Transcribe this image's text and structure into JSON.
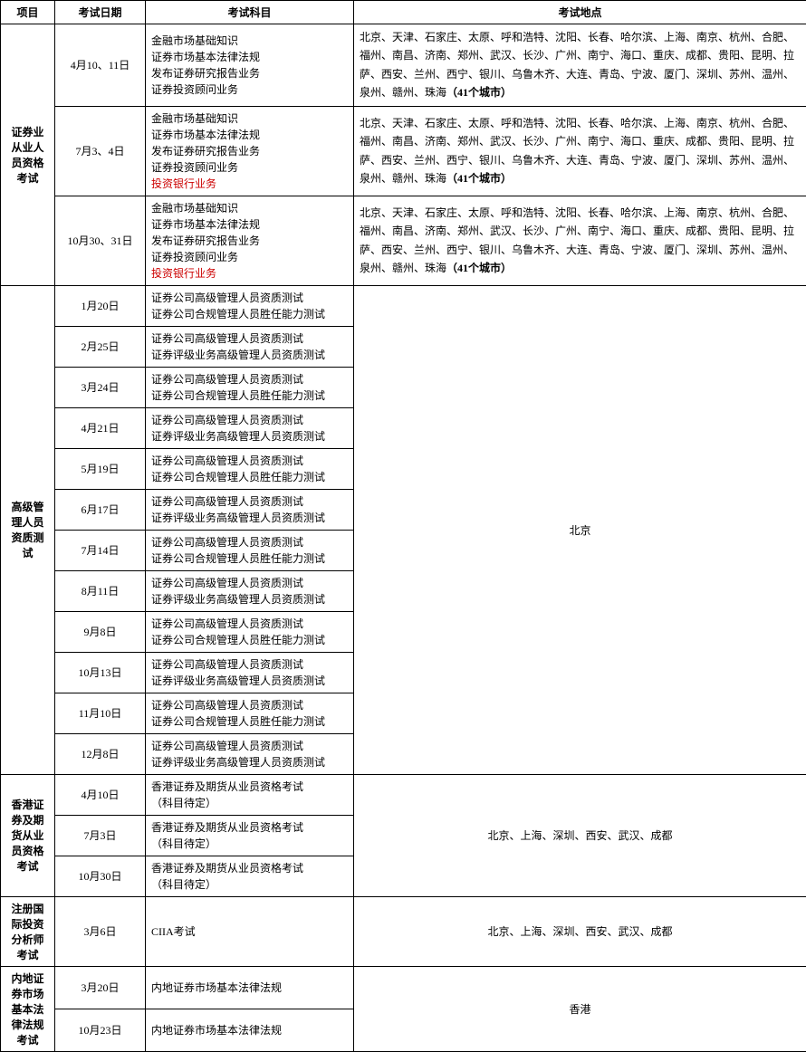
{
  "headers": {
    "project": "项目",
    "date": "考试日期",
    "subject": "考试科目",
    "location": "考试地点"
  },
  "sec1": {
    "name": "证券业从业人员资格考试",
    "rows": [
      {
        "date": "4月10、11日",
        "subjects": [
          "金融市场基础知识",
          "证券市场基本法律法规",
          "发布证券研究报告业务",
          "证券投资顾问业务"
        ],
        "reds": [],
        "loc_part1": "北京、天津、石家庄、太原、呼和浩特、沈阳、长春、哈尔滨、上海、南京、杭州、合肥、福州、南昌、济南、郑州、武汉、长沙、广州、南宁、海口、重庆、成都、贵阳、昆明、拉萨、西安、兰州、西宁、银川、乌鲁木齐、大连、青岛、宁波、厦门、深圳、苏州、温州、泉州、赣州、珠海",
        "loc_bold": "（41个城市）"
      },
      {
        "date": "7月3、4日",
        "subjects": [
          "金融市场基础知识",
          "证券市场基本法律法规",
          "发布证券研究报告业务",
          "证券投资顾问业务"
        ],
        "reds": [
          "投资银行业务"
        ],
        "loc_part1": "北京、天津、石家庄、太原、呼和浩特、沈阳、长春、哈尔滨、上海、南京、杭州、合肥、福州、南昌、济南、郑州、武汉、长沙、广州、南宁、海口、重庆、成都、贵阳、昆明、拉萨、西安、兰州、西宁、银川、乌鲁木齐、大连、青岛、宁波、厦门、深圳、苏州、温州、泉州、赣州、珠海",
        "loc_bold": "（41个城市）"
      },
      {
        "date": "10月30、31日",
        "subjects": [
          "金融市场基础知识",
          "证券市场基本法律法规",
          "发布证券研究报告业务",
          "证券投资顾问业务"
        ],
        "reds": [
          "投资银行业务"
        ],
        "loc_part1": "北京、天津、石家庄、太原、呼和浩特、沈阳、长春、哈尔滨、上海、南京、杭州、合肥、福州、南昌、济南、郑州、武汉、长沙、广州、南宁、海口、重庆、成都、贵阳、昆明、拉萨、西安、兰州、西宁、银川、乌鲁木齐、大连、青岛、宁波、厦门、深圳、苏州、温州、泉州、赣州、珠海",
        "loc_bold": "（41个城市）"
      }
    ]
  },
  "sec2": {
    "name": "高级管理人员资质测试",
    "location": "北京",
    "rows": [
      {
        "date": "1月20日",
        "subjects": [
          "证券公司高级管理人员资质测试",
          "证券公司合规管理人员胜任能力测试"
        ]
      },
      {
        "date": "2月25日",
        "subjects": [
          "证券公司高级管理人员资质测试",
          "证券评级业务高级管理人员资质测试"
        ]
      },
      {
        "date": "3月24日",
        "subjects": [
          "证券公司高级管理人员资质测试",
          "证券公司合规管理人员胜任能力测试"
        ]
      },
      {
        "date": "4月21日",
        "subjects": [
          "证券公司高级管理人员资质测试",
          "证券评级业务高级管理人员资质测试"
        ]
      },
      {
        "date": "5月19日",
        "subjects": [
          "证券公司高级管理人员资质测试",
          "证券公司合规管理人员胜任能力测试"
        ]
      },
      {
        "date": "6月17日",
        "subjects": [
          "证券公司高级管理人员资质测试",
          "证券评级业务高级管理人员资质测试"
        ]
      },
      {
        "date": "7月14日",
        "subjects": [
          "证券公司高级管理人员资质测试",
          "证券公司合规管理人员胜任能力测试"
        ]
      },
      {
        "date": "8月11日",
        "subjects": [
          "证券公司高级管理人员资质测试",
          "证券评级业务高级管理人员资质测试"
        ]
      },
      {
        "date": "9月8日",
        "subjects": [
          "证券公司高级管理人员资质测试",
          "证券公司合规管理人员胜任能力测试"
        ]
      },
      {
        "date": "10月13日",
        "subjects": [
          "证券公司高级管理人员资质测试",
          "证券评级业务高级管理人员资质测试"
        ]
      },
      {
        "date": "11月10日",
        "subjects": [
          "证券公司高级管理人员资质测试",
          "证券公司合规管理人员胜任能力测试"
        ]
      },
      {
        "date": "12月8日",
        "subjects": [
          "证券公司高级管理人员资质测试",
          "证券评级业务高级管理人员资质测试"
        ]
      }
    ]
  },
  "sec3": {
    "name": "香港证券及期货从业员资格考试",
    "location": "北京、上海、深圳、西安、武汉、成都",
    "rows": [
      {
        "date": "4月10日",
        "subjects": [
          "香港证券及期货从业员资格考试",
          "（科目待定）"
        ]
      },
      {
        "date": "7月3日",
        "subjects": [
          "香港证券及期货从业员资格考试",
          "（科目待定）"
        ]
      },
      {
        "date": "10月30日",
        "subjects": [
          "香港证券及期货从业员资格考试",
          "（科目待定）"
        ]
      }
    ]
  },
  "sec4": {
    "name": "注册国际投资分析师考试",
    "location": "北京、上海、深圳、西安、武汉、成都",
    "rows": [
      {
        "date": "3月6日",
        "subjects": [
          "CIIA考试"
        ]
      }
    ]
  },
  "sec5": {
    "name": "内地证券市场基本法律法规考试",
    "location": "香港",
    "rows": [
      {
        "date": "3月20日",
        "subjects": [
          "内地证券市场基本法律法规"
        ]
      },
      {
        "date": "10月23日",
        "subjects": [
          "内地证券市场基本法律法规"
        ]
      }
    ]
  }
}
